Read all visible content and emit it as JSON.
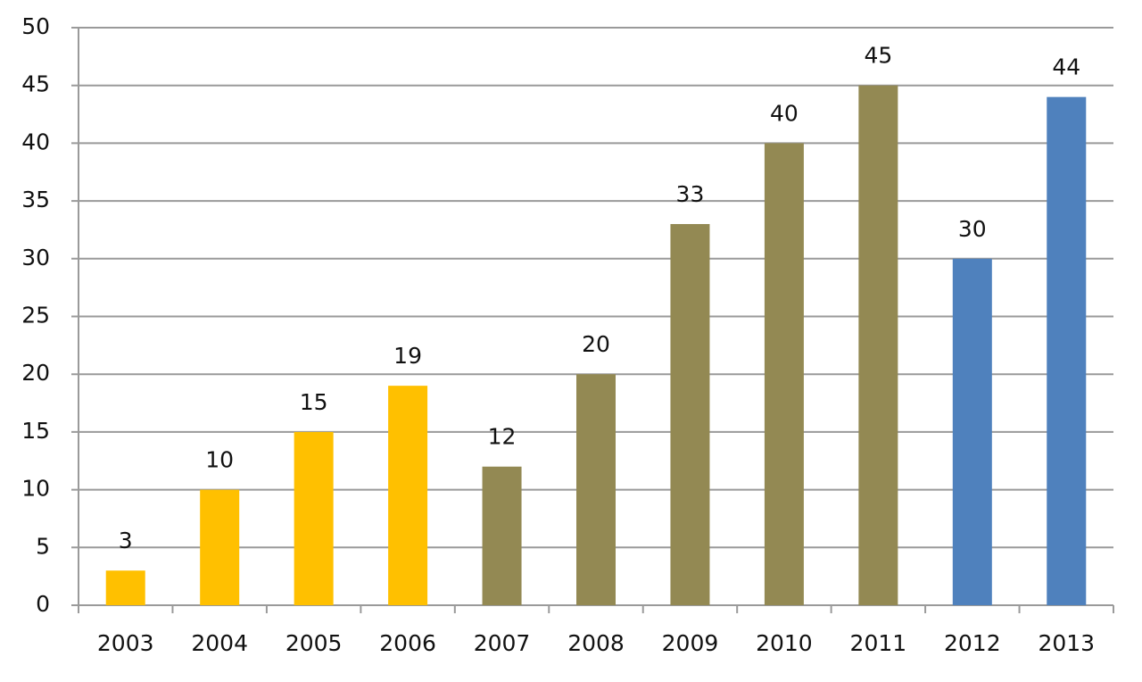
{
  "chart_data": {
    "type": "bar",
    "categories": [
      "2003",
      "2004",
      "2005",
      "2006",
      "2007",
      "2008",
      "2009",
      "2010",
      "2011",
      "2012",
      "2013"
    ],
    "values": [
      3,
      10,
      15,
      19,
      12,
      20,
      33,
      40,
      45,
      30,
      44
    ],
    "colors": [
      "#ffc000",
      "#ffc000",
      "#ffc000",
      "#ffc000",
      "#938953",
      "#938953",
      "#938953",
      "#938953",
      "#938953",
      "#4f81bd",
      "#4f81bd"
    ],
    "ylim": [
      0,
      50
    ],
    "yticks": [
      0,
      5,
      10,
      15,
      20,
      25,
      30,
      35,
      40,
      45,
      50
    ],
    "grid": true
  }
}
